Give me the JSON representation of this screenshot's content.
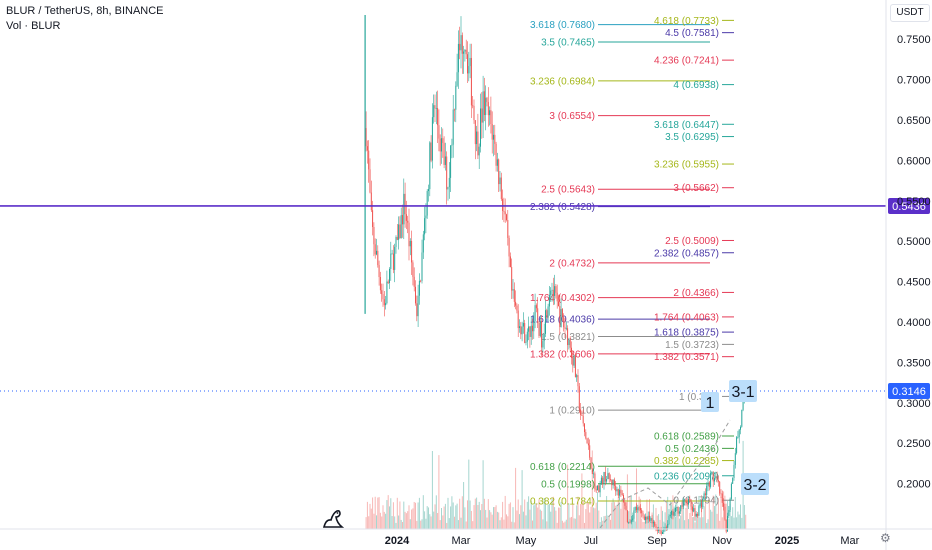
{
  "header": {
    "title": "BLUR / TetherUS, 8h, BINANCE",
    "volume_label": "Vol · BLUR",
    "currency": "USDT"
  },
  "colors": {
    "background": "#ffffff",
    "up": "#26a69a",
    "down": "#ef5350",
    "vol_up": "#a5d6cf",
    "vol_down": "#f7b7b5",
    "trendline": "#5b2fc9",
    "last_price": "#2962ff",
    "note_bg": "#bbdefb",
    "fib_gray": "#8c8c8c",
    "fib_green": "#43a047",
    "fib_lime": "#a5b71a",
    "fib_teal": "#26a69a",
    "fib_cyan": "#29a0c0",
    "fib_red": "#e53955",
    "fib_purple": "#4b3aa8"
  },
  "chart_data": {
    "type": "candlestick",
    "symbol": "BLUR / TetherUS",
    "interval": "8h",
    "exchange": "BINANCE",
    "y_axis": {
      "ticks": [
        "0.2000",
        "0.2500",
        "0.3000",
        "0.3500",
        "0.4000",
        "0.4500",
        "0.5000",
        "0.5500",
        "0.6000",
        "0.6500",
        "0.7000",
        "0.7500"
      ],
      "range": [
        0.14,
        0.78
      ],
      "unit": "USDT"
    },
    "x_axis": {
      "ticks": [
        "2024",
        "Mar",
        "May",
        "Jul",
        "Sep",
        "Nov",
        "2025",
        "Mar"
      ]
    },
    "price_path": [
      [
        "2023-12-03",
        0.64
      ],
      [
        "2023-12-08",
        0.52
      ],
      [
        "2023-12-14",
        0.47
      ],
      [
        "2023-12-20",
        0.42
      ],
      [
        "2023-12-26",
        0.47
      ],
      [
        "2024-01-02",
        0.5
      ],
      [
        "2024-01-08",
        0.55
      ],
      [
        "2024-01-14",
        0.48
      ],
      [
        "2024-01-20",
        0.41
      ],
      [
        "2024-01-28",
        0.54
      ],
      [
        "2024-02-05",
        0.67
      ],
      [
        "2024-02-11",
        0.62
      ],
      [
        "2024-02-18",
        0.57
      ],
      [
        "2024-02-26",
        0.72
      ],
      [
        "2024-03-04",
        0.76
      ],
      [
        "2024-03-10",
        0.7
      ],
      [
        "2024-03-16",
        0.62
      ],
      [
        "2024-03-22",
        0.67
      ],
      [
        "2024-03-30",
        0.64
      ],
      [
        "2024-04-06",
        0.58
      ],
      [
        "2024-04-12",
        0.52
      ],
      [
        "2024-04-18",
        0.43
      ],
      [
        "2024-04-25",
        0.4
      ],
      [
        "2024-05-02",
        0.38
      ],
      [
        "2024-05-10",
        0.41
      ],
      [
        "2024-05-16",
        0.38
      ],
      [
        "2024-05-24",
        0.45
      ],
      [
        "2024-06-01",
        0.41
      ],
      [
        "2024-06-08",
        0.39
      ],
      [
        "2024-06-15",
        0.35
      ],
      [
        "2024-06-22",
        0.28
      ],
      [
        "2024-06-29",
        0.24
      ],
      [
        "2024-07-06",
        0.19
      ],
      [
        "2024-07-14",
        0.21
      ],
      [
        "2024-07-22",
        0.2
      ],
      [
        "2024-08-01",
        0.18
      ],
      [
        "2024-08-05",
        0.15
      ],
      [
        "2024-08-12",
        0.17
      ],
      [
        "2024-08-20",
        0.16
      ],
      [
        "2024-08-28",
        0.15
      ],
      [
        "2024-09-06",
        0.14
      ],
      [
        "2024-09-14",
        0.16
      ],
      [
        "2024-09-22",
        0.17
      ],
      [
        "2024-09-30",
        0.18
      ],
      [
        "2024-10-07",
        0.16
      ],
      [
        "2024-10-14",
        0.18
      ],
      [
        "2024-10-22",
        0.21
      ],
      [
        "2024-10-28",
        0.2
      ],
      [
        "2024-11-02",
        0.17
      ],
      [
        "2024-11-05",
        0.145
      ],
      [
        "2024-11-10",
        0.2
      ],
      [
        "2024-11-14",
        0.25
      ],
      [
        "2024-11-18",
        0.27
      ],
      [
        "2024-11-22",
        0.31
      ],
      [
        "2024-11-24",
        0.3146
      ]
    ],
    "last_price": "0.3146",
    "line_price_label": "0.5436",
    "fib_levels_left": [
      {
        "label": "3.618 (0.7680)",
        "value": 0.768,
        "color": "fib_cyan"
      },
      {
        "label": "3.5 (0.7465)",
        "value": 0.7465,
        "color": "fib_teal"
      },
      {
        "label": "3.236 (0.6984)",
        "value": 0.6984,
        "color": "fib_lime"
      },
      {
        "label": "3 (0.6554)",
        "value": 0.6554,
        "color": "fib_red"
      },
      {
        "label": "2.5 (0.5643)",
        "value": 0.5643,
        "color": "fib_red"
      },
      {
        "label": "2.382 (0.5428)",
        "value": 0.5428,
        "color": "fib_purple"
      },
      {
        "label": "2 (0.4732)",
        "value": 0.4732,
        "color": "fib_red"
      },
      {
        "label": "1.764 (0.4302)",
        "value": 0.4302,
        "color": "fib_red"
      },
      {
        "label": "1.618 (0.4036)",
        "value": 0.4036,
        "color": "fib_purple"
      },
      {
        "label": "1.5 (0.3821)",
        "value": 0.3821,
        "color": "fib_gray"
      },
      {
        "label": "1.382 (0.3606)",
        "value": 0.3606,
        "color": "fib_red"
      },
      {
        "label": "1 (0.2910)",
        "value": 0.291,
        "color": "fib_gray"
      },
      {
        "label": "0.618 (0.2214)",
        "value": 0.2214,
        "color": "fib_green"
      },
      {
        "label": "0.5 (0.1998)",
        "value": 0.1998,
        "color": "fib_green"
      },
      {
        "label": "0.382 (0.1784)",
        "value": 0.1784,
        "color": "fib_lime"
      }
    ],
    "fib_levels_right": [
      {
        "label": "4.618 (0.7733)",
        "value": 0.7733,
        "color": "fib_lime"
      },
      {
        "label": "4.5 (0.7581)",
        "value": 0.7581,
        "color": "fib_purple"
      },
      {
        "label": "4.236 (0.7241)",
        "value": 0.7241,
        "color": "fib_red"
      },
      {
        "label": "4 (0.6938)",
        "value": 0.6938,
        "color": "fib_teal"
      },
      {
        "label": "3.618 (0.6447)",
        "value": 0.6447,
        "color": "fib_teal"
      },
      {
        "label": "3.5 (0.6295)",
        "value": 0.6295,
        "color": "fib_teal"
      },
      {
        "label": "3.236 (0.5955)",
        "value": 0.5955,
        "color": "fib_lime"
      },
      {
        "label": "3 (0.5662)",
        "value": 0.5662,
        "color": "fib_red"
      },
      {
        "label": "2.5 (0.5009)",
        "value": 0.5009,
        "color": "fib_red"
      },
      {
        "label": "2.382 (0.4857)",
        "value": 0.4857,
        "color": "fib_purple"
      },
      {
        "label": "2 (0.4366)",
        "value": 0.4366,
        "color": "fib_red"
      },
      {
        "label": "1.764 (0.4063)",
        "value": 0.4063,
        "color": "fib_red"
      },
      {
        "label": "1.618 (0.3875)",
        "value": 0.3875,
        "color": "fib_purple"
      },
      {
        "label": "1.5 (0.3723)",
        "value": 0.3723,
        "color": "fib_gray"
      },
      {
        "label": "1.382 (0.3571)",
        "value": 0.3571,
        "color": "fib_red"
      },
      {
        "label": "1 (0.30..)",
        "value": 0.3079,
        "color": "fib_gray"
      },
      {
        "label": "0.618 (0.2589)",
        "value": 0.2589,
        "color": "fib_green"
      },
      {
        "label": "0.5 (0.2436)",
        "value": 0.2436,
        "color": "fib_green"
      },
      {
        "label": "0.382 (0.2285)",
        "value": 0.2285,
        "color": "fib_lime"
      },
      {
        "label": "0.236 (0.2097)",
        "value": 0.2097,
        "color": "fib_teal"
      },
      {
        "label": "0 (0.1794)",
        "value": 0.1794,
        "color": "fib_gray"
      }
    ],
    "annotations": [
      "1",
      "3-1",
      "3-2"
    ]
  }
}
